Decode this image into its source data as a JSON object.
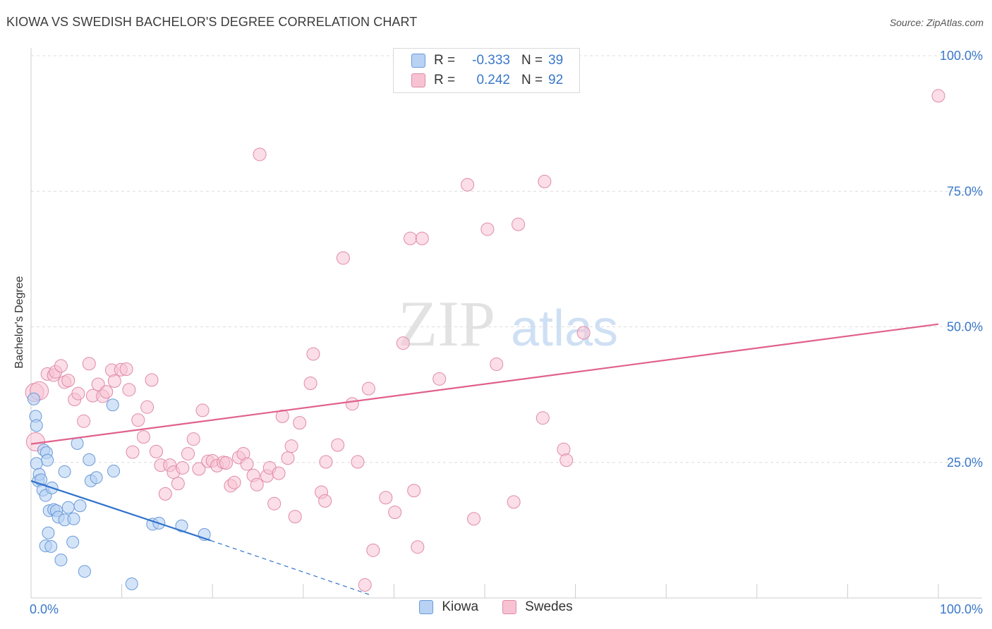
{
  "title": "KIOWA VS SWEDISH BACHELOR'S DEGREE CORRELATION CHART",
  "source": "Source: ZipAtlas.com",
  "watermark": {
    "zip": "ZIP",
    "atlas": "atlas"
  },
  "colors": {
    "kiowa_fill": "#b8d2f4",
    "kiowa_stroke": "#6a9ad8",
    "kiowa_line": "#3072cc",
    "swedes_fill": "#f7c3d3",
    "swedes_stroke": "#e08aa8",
    "swedes_line": "#e0608c",
    "tick_text": "#3a78c9",
    "grid": "#dcdcdc"
  },
  "legend": {
    "rows": [
      {
        "r_label": "R =",
        "r_value": "-0.333",
        "n_label": "N =",
        "n_value": "39"
      },
      {
        "r_label": "R =",
        "r_value": "0.242",
        "n_label": "N =",
        "n_value": "92"
      }
    ]
  },
  "bottom_legend": {
    "kiowa": "Kiowa",
    "swedes": "Swedes"
  },
  "chart_data": {
    "type": "scatter",
    "ylabel": "Bachelor's Degree",
    "xlim": [
      0,
      100
    ],
    "ylim": [
      0,
      100
    ],
    "x_tick_labels": [
      "0.0%",
      "100.0%"
    ],
    "y_ticks": [
      {
        "value": 25,
        "label": "25.0%"
      },
      {
        "value": 50,
        "label": "50.0%"
      },
      {
        "value": 75,
        "label": "75.0%"
      },
      {
        "value": 100,
        "label": "100.0%"
      }
    ],
    "grid": true,
    "series": [
      {
        "name": "Kiowa",
        "points": [
          [
            0.3,
            36.7
          ],
          [
            0.5,
            33.5
          ],
          [
            0.6,
            24.8
          ],
          [
            0.6,
            31.8
          ],
          [
            0.8,
            21.6
          ],
          [
            0.9,
            22.8
          ],
          [
            1.1,
            21.8
          ],
          [
            1.3,
            19.9
          ],
          [
            1.4,
            27.3
          ],
          [
            1.6,
            18.9
          ],
          [
            1.6,
            9.6
          ],
          [
            1.7,
            26.8
          ],
          [
            1.8,
            25.4
          ],
          [
            1.9,
            12.0
          ],
          [
            2.0,
            16.1
          ],
          [
            2.2,
            9.5
          ],
          [
            2.3,
            20.3
          ],
          [
            2.5,
            16.3
          ],
          [
            2.8,
            16.1
          ],
          [
            3.0,
            14.9
          ],
          [
            3.3,
            7.0
          ],
          [
            3.7,
            23.3
          ],
          [
            3.7,
            14.4
          ],
          [
            4.1,
            16.7
          ],
          [
            4.6,
            10.3
          ],
          [
            4.7,
            14.6
          ],
          [
            5.1,
            28.5
          ],
          [
            5.4,
            17.0
          ],
          [
            5.9,
            4.9
          ],
          [
            6.4,
            25.5
          ],
          [
            6.6,
            21.6
          ],
          [
            7.2,
            22.2
          ],
          [
            9.0,
            35.6
          ],
          [
            9.1,
            23.4
          ],
          [
            11.1,
            2.6
          ],
          [
            13.4,
            13.6
          ],
          [
            14.1,
            13.8
          ],
          [
            16.6,
            13.3
          ],
          [
            19.1,
            11.7
          ]
        ],
        "trend": {
          "x0": 0,
          "y0": 21.6,
          "x1": 19.8,
          "y1": 10.6,
          "dash_x1": 37.5,
          "dash_y1": 0.5
        }
      },
      {
        "name": "Swedes",
        "points": [
          [
            0.4,
            37.9
          ],
          [
            0.5,
            28.8
          ],
          [
            1.8,
            41.3
          ],
          [
            2.5,
            41.1
          ],
          [
            2.7,
            41.7
          ],
          [
            3.3,
            42.8
          ],
          [
            3.7,
            39.8
          ],
          [
            4.1,
            40.1
          ],
          [
            4.8,
            36.6
          ],
          [
            5.2,
            37.7
          ],
          [
            5.8,
            32.6
          ],
          [
            6.4,
            43.2
          ],
          [
            6.8,
            37.3
          ],
          [
            7.4,
            39.4
          ],
          [
            7.9,
            37.2
          ],
          [
            8.3,
            38.0
          ],
          [
            8.9,
            42.0
          ],
          [
            9.2,
            40.0
          ],
          [
            9.9,
            42.1
          ],
          [
            10.5,
            42.2
          ],
          [
            10.8,
            38.4
          ],
          [
            11.2,
            26.9
          ],
          [
            11.8,
            32.8
          ],
          [
            12.4,
            29.7
          ],
          [
            12.8,
            35.2
          ],
          [
            13.3,
            40.2
          ],
          [
            13.8,
            27.0
          ],
          [
            14.3,
            24.5
          ],
          [
            14.8,
            19.2
          ],
          [
            15.3,
            24.5
          ],
          [
            15.7,
            23.2
          ],
          [
            16.2,
            21.1
          ],
          [
            16.7,
            24.0
          ],
          [
            17.3,
            26.6
          ],
          [
            17.9,
            29.3
          ],
          [
            18.5,
            23.8
          ],
          [
            18.9,
            34.6
          ],
          [
            19.5,
            25.2
          ],
          [
            20.0,
            25.3
          ],
          [
            20.5,
            24.4
          ],
          [
            21.2,
            25.0
          ],
          [
            21.5,
            24.9
          ],
          [
            22.0,
            20.7
          ],
          [
            22.4,
            21.3
          ],
          [
            22.9,
            25.9
          ],
          [
            23.4,
            26.6
          ],
          [
            23.8,
            24.7
          ],
          [
            24.5,
            22.6
          ],
          [
            24.9,
            20.9
          ],
          [
            25.2,
            81.8
          ],
          [
            26.0,
            22.5
          ],
          [
            26.3,
            24.0
          ],
          [
            26.8,
            17.4
          ],
          [
            27.3,
            23.0
          ],
          [
            27.7,
            33.5
          ],
          [
            28.3,
            25.8
          ],
          [
            28.7,
            28.0
          ],
          [
            29.1,
            15.0
          ],
          [
            29.6,
            32.3
          ],
          [
            30.8,
            39.6
          ],
          [
            31.1,
            45.0
          ],
          [
            32.0,
            19.5
          ],
          [
            32.4,
            17.9
          ],
          [
            32.5,
            25.1
          ],
          [
            33.8,
            28.2
          ],
          [
            34.4,
            62.7
          ],
          [
            35.4,
            35.8
          ],
          [
            36.0,
            25.1
          ],
          [
            37.2,
            38.6
          ],
          [
            37.7,
            8.8
          ],
          [
            36.8,
            2.4
          ],
          [
            39.1,
            18.5
          ],
          [
            40.1,
            15.8
          ],
          [
            41.0,
            47.0
          ],
          [
            41.8,
            66.3
          ],
          [
            43.1,
            66.3
          ],
          [
            42.2,
            19.8
          ],
          [
            42.6,
            9.4
          ],
          [
            45.0,
            40.4
          ],
          [
            48.1,
            76.2
          ],
          [
            48.8,
            14.6
          ],
          [
            50.3,
            68.0
          ],
          [
            51.3,
            43.1
          ],
          [
            53.2,
            17.7
          ],
          [
            53.7,
            68.9
          ],
          [
            56.4,
            33.2
          ],
          [
            56.6,
            76.8
          ],
          [
            58.7,
            27.4
          ],
          [
            59.0,
            25.4
          ],
          [
            60.9,
            48.9
          ],
          [
            100.0,
            92.6
          ],
          [
            0.9,
            38.2
          ]
        ],
        "trend": {
          "x0": 0,
          "y0": 28.4,
          "x1": 100,
          "y1": 50.5
        }
      }
    ]
  }
}
